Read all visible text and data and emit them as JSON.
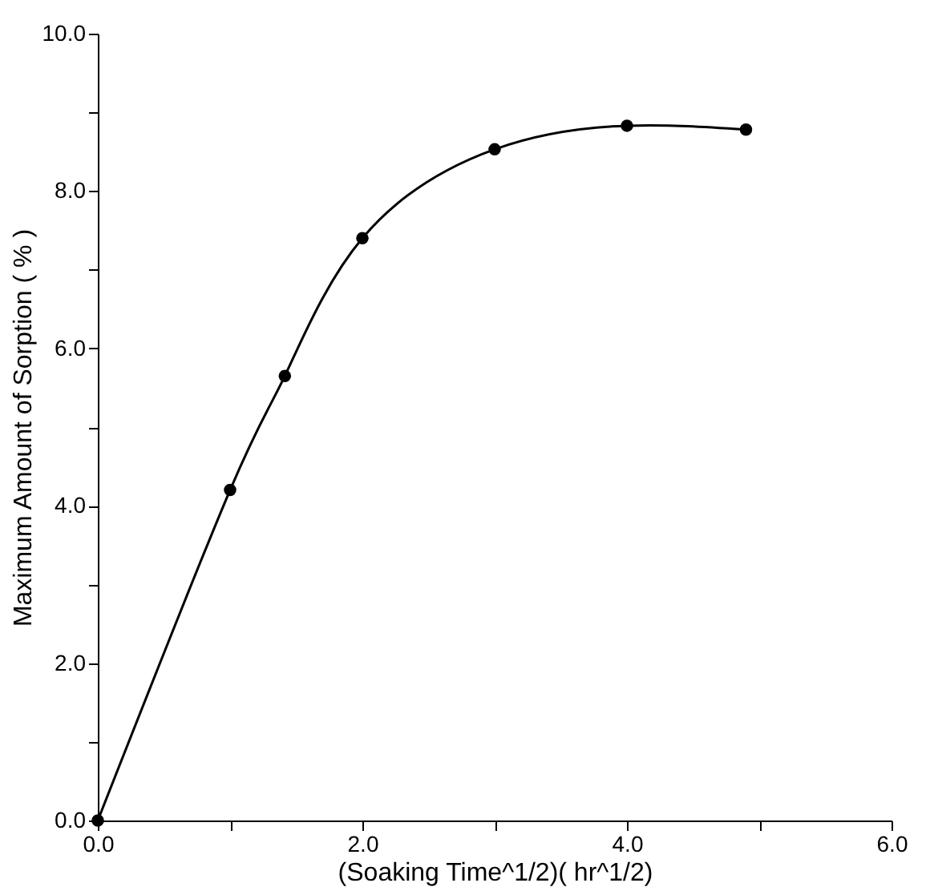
{
  "chart_data": {
    "type": "line",
    "xlabel": "(Soaking Time^1/2)( hr^1/2)",
    "ylabel": "Maximum Amount of Sorption ( % )",
    "x": [
      0,
      1,
      1.414,
      2,
      3,
      4,
      4.9
    ],
    "series": [
      {
        "color": "#000000",
        "values": [
          0,
          4.2,
          5.65,
          7.4,
          8.53,
          8.83,
          8.78
        ]
      }
    ],
    "marker": "circle",
    "line_style": "solid",
    "grid": false,
    "xlim": [
      0,
      6
    ],
    "ylim": [
      0,
      10
    ],
    "xticks": [
      {
        "value": 0,
        "label": "0.0"
      },
      {
        "value": 1,
        "label": null
      },
      {
        "value": 2,
        "label": "2.0"
      },
      {
        "value": 3,
        "label": null
      },
      {
        "value": 4,
        "label": "4.0"
      },
      {
        "value": 5,
        "label": null
      },
      {
        "value": 6,
        "label": "6.0"
      }
    ],
    "yticks": [
      {
        "value": 0,
        "label": "0.0"
      },
      {
        "value": 1,
        "label": null
      },
      {
        "value": 2,
        "label": "2.0"
      },
      {
        "value": 3,
        "label": null
      },
      {
        "value": 4,
        "label": "4.0"
      },
      {
        "value": 5,
        "label": null
      },
      {
        "value": 6,
        "label": "6.0"
      },
      {
        "value": 7,
        "label": null
      },
      {
        "value": 8,
        "label": "8.0"
      },
      {
        "value": 9,
        "label": null
      },
      {
        "value": 10,
        "label": "10.0"
      }
    ]
  }
}
